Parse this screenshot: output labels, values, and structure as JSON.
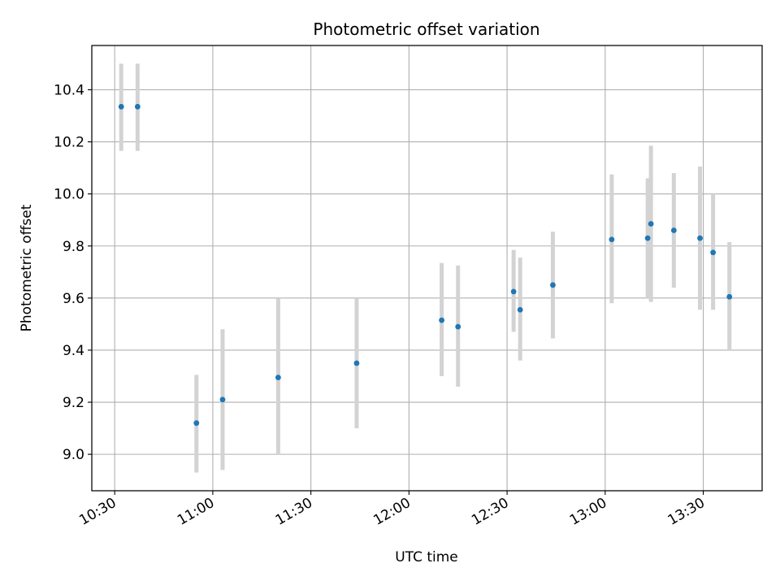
{
  "chart_data": {
    "type": "scatter",
    "title": "Photometric offset variation",
    "xlabel": "UTC time",
    "ylabel": "Photometric offset",
    "x_tick_labels": [
      "10:30",
      "11:00",
      "11:30",
      "12:00",
      "12:30",
      "13:00",
      "13:30"
    ],
    "y_tick_labels": [
      "9.0",
      "9.2",
      "9.4",
      "9.6",
      "9.8",
      "10.0",
      "10.2",
      "10.4"
    ],
    "xlim": [
      "10:23",
      "13:48"
    ],
    "ylim": [
      8.86,
      10.57
    ],
    "grid": true,
    "colors": {
      "marker": "#1f77b4",
      "errorbar": "#d3d3d3",
      "grid": "#b0b0b0"
    },
    "points": [
      {
        "x": "10:32",
        "y": 10.335,
        "y_low": 10.165,
        "y_high": 10.5
      },
      {
        "x": "10:37",
        "y": 10.335,
        "y_low": 10.165,
        "y_high": 10.5
      },
      {
        "x": "10:55",
        "y": 9.12,
        "y_low": 8.93,
        "y_high": 9.305
      },
      {
        "x": "11:03",
        "y": 9.21,
        "y_low": 8.94,
        "y_high": 9.48
      },
      {
        "x": "11:20",
        "y": 9.295,
        "y_low": 9.0,
        "y_high": 9.6
      },
      {
        "x": "11:44",
        "y": 9.35,
        "y_low": 9.1,
        "y_high": 9.6
      },
      {
        "x": "12:10",
        "y": 9.515,
        "y_low": 9.3,
        "y_high": 9.735
      },
      {
        "x": "12:15",
        "y": 9.49,
        "y_low": 9.26,
        "y_high": 9.725
      },
      {
        "x": "12:32",
        "y": 9.625,
        "y_low": 9.47,
        "y_high": 9.785
      },
      {
        "x": "12:34",
        "y": 9.555,
        "y_low": 9.36,
        "y_high": 9.755
      },
      {
        "x": "12:44",
        "y": 9.65,
        "y_low": 9.445,
        "y_high": 9.855
      },
      {
        "x": "13:02",
        "y": 9.825,
        "y_low": 9.58,
        "y_high": 10.075
      },
      {
        "x": "13:13",
        "y": 9.83,
        "y_low": 9.6,
        "y_high": 10.06
      },
      {
        "x": "13:14",
        "y": 9.885,
        "y_low": 9.585,
        "y_high": 10.185
      },
      {
        "x": "13:21",
        "y": 9.86,
        "y_low": 9.64,
        "y_high": 10.08
      },
      {
        "x": "13:29",
        "y": 9.83,
        "y_low": 9.555,
        "y_high": 10.105
      },
      {
        "x": "13:33",
        "y": 9.775,
        "y_low": 9.555,
        "y_high": 10.0
      },
      {
        "x": "13:38",
        "y": 9.605,
        "y_low": 9.4,
        "y_high": 9.815
      }
    ]
  }
}
